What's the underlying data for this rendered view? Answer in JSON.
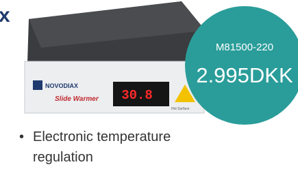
{
  "close_icon": "x",
  "product": {
    "brand": "NOVODIAX",
    "model_name": "Slide Warmer",
    "display": "30.8",
    "warning": "Hot Surface"
  },
  "badge": {
    "sku": "M81500-220",
    "price": "2.995DKK"
  },
  "features": [
    "Electronic temperature regulation"
  ]
}
